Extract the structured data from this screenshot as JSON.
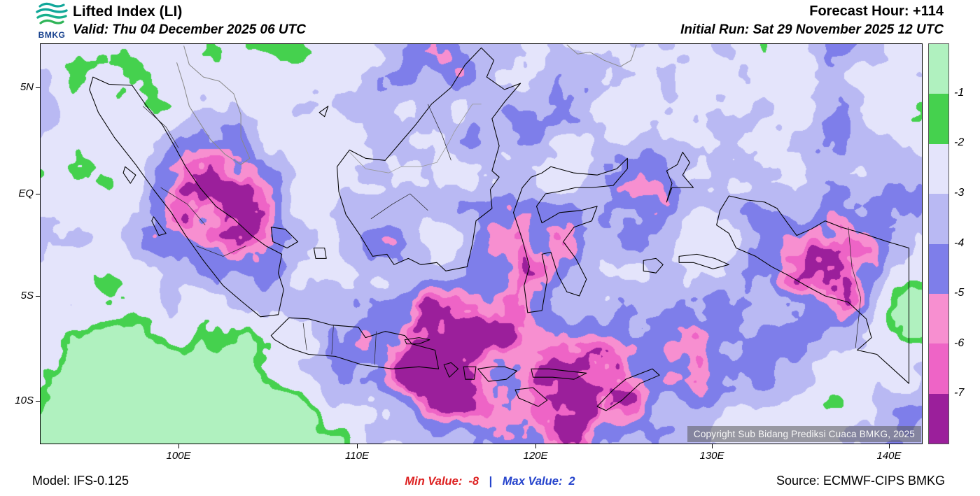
{
  "header": {
    "logo_text": "BMKG",
    "title": "Lifted Index (LI)",
    "valid_line": "Valid: Thu 04 December 2025 06 UTC",
    "forecast_hour": "Forecast Hour: +114",
    "initial_run": "Initial Run: Sat 29 November 2025 12 UTC"
  },
  "map": {
    "lat_labels": [
      "5N",
      "EQ",
      "5S",
      "10S"
    ],
    "lon_labels": [
      "100E",
      "110E",
      "120E",
      "130E",
      "140E"
    ],
    "copyright": "Copyright Sub Bidang Prediksi Cuaca BMKG, 2025"
  },
  "colorbar": {
    "labels": [
      "-1",
      "-2",
      "-3",
      "-4",
      "-5",
      "-6",
      "-7"
    ],
    "colors": [
      "#b0f1bf",
      "#45d14e",
      "#e4e4fb",
      "#b9b9f3",
      "#7e7eea",
      "#f78fd0",
      "#ee64c6",
      "#9b1f9b"
    ]
  },
  "footer": {
    "model": "Model: IFS-0.125",
    "min_label": "Min Value:",
    "min_value": "-8",
    "separator": "|",
    "max_label": "Max Value:",
    "max_value": "2",
    "source": "Source: ECMWF-CIPS BMKG"
  },
  "accent_colors": {
    "min_color": "#dd2222",
    "max_color": "#2644cc"
  }
}
